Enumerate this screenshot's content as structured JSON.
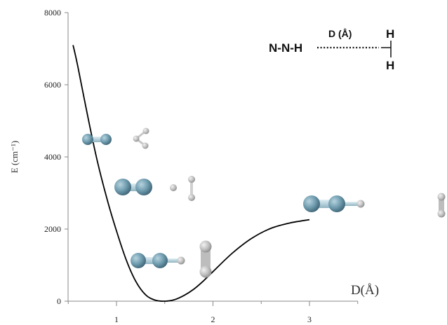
{
  "chart_data": {
    "type": "line",
    "title": "",
    "xlabel": "D(Å)",
    "ylabel": "E (cm⁻¹)",
    "xlim": [
      0.5,
      3.5
    ],
    "ylim": [
      0,
      8000
    ],
    "x_ticks": [
      "1",
      "2",
      "3"
    ],
    "y_ticks": [
      "0",
      "2000",
      "4000",
      "6000",
      "8000"
    ],
    "grid": false,
    "series": [
      {
        "color": "#000000",
        "x": [
          0.55,
          0.6,
          0.7,
          0.8,
          0.9,
          1.0,
          1.1,
          1.2,
          1.3,
          1.4,
          1.5,
          1.6,
          1.7,
          1.8,
          1.9,
          2.0,
          2.2,
          2.4,
          2.6,
          2.8,
          3.0
        ],
        "y": [
          7100,
          6500,
          5150,
          3900,
          2850,
          1950,
          1150,
          550,
          180,
          30,
          0,
          40,
          160,
          330,
          560,
          820,
          1330,
          1740,
          2020,
          2170,
          2260
        ]
      }
    ]
  },
  "diagram": {
    "left_label": "N-N-H",
    "distance_label": "D (Å)",
    "h_top": "H",
    "h_bottom": "H"
  },
  "colors": {
    "nitrogen": "#5f8ea0",
    "hydrogen": "#b4b4b4"
  }
}
